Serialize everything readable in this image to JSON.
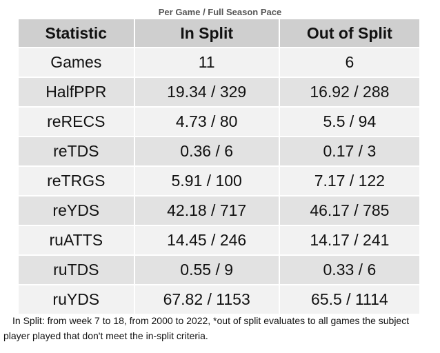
{
  "subtitle": "Per Game / Full Season Pace",
  "table": {
    "header": [
      "Statistic",
      "In Split",
      "Out of Split"
    ],
    "rows": [
      [
        "Games",
        "11",
        "6"
      ],
      [
        "HalfPPR",
        "19.34 / 329",
        "16.92 / 288"
      ],
      [
        "reRECS",
        "4.73 / 80",
        "5.5 / 94"
      ],
      [
        "reTDS",
        "0.36 / 6",
        "0.17 / 3"
      ],
      [
        "reTRGS",
        "5.91 / 100",
        "7.17 / 122"
      ],
      [
        "reYDS",
        "42.18 / 717",
        "46.17 / 785"
      ],
      [
        "ruATTS",
        "14.45 / 246",
        "14.17 / 241"
      ],
      [
        "ruTDS",
        "0.55 / 9",
        "0.33 / 6"
      ],
      [
        "ruYDS",
        "67.82 / 1153",
        "65.5 / 1114"
      ]
    ]
  },
  "footnote": "In Split: from week 7 to 18, from 2000 to 2022,  *out of split evaluates to all games the subject player played that don't meet the in-split criteria."
}
